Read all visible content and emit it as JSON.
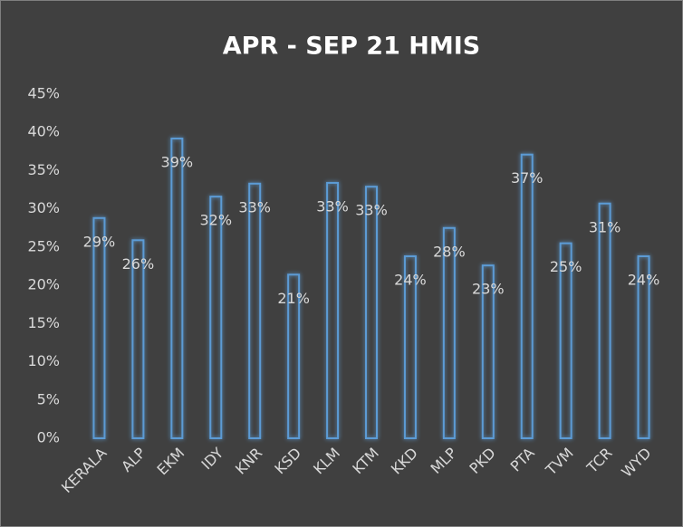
{
  "chart_data": {
    "type": "bar",
    "title": "APR - SEP 21 HMIS",
    "categories": [
      "KERALA",
      "ALP",
      "EKM",
      "IDY",
      "KNR",
      "KSD",
      "KLM",
      "KTM",
      "KKD",
      "MLP",
      "PKD",
      "PTA",
      "TVM",
      "TCR",
      "WYD"
    ],
    "values": [
      28.8,
      25.9,
      39.2,
      31.6,
      33.3,
      21.4,
      33.4,
      32.9,
      23.8,
      27.5,
      22.6,
      37.1,
      25.5,
      30.7,
      23.8
    ],
    "value_labels": [
      "29%",
      "26%",
      "39%",
      "32%",
      "33%",
      "21%",
      "33%",
      "33%",
      "24%",
      "28%",
      "23%",
      "37%",
      "25%",
      "31%",
      "24%"
    ],
    "color": "#5b9bd5",
    "ylim": [
      0,
      45
    ],
    "yticks": [
      {
        "value": 0,
        "label": "0%"
      },
      {
        "value": 5,
        "label": "5%"
      },
      {
        "value": 10,
        "label": "10%"
      },
      {
        "value": 15,
        "label": "15%"
      },
      {
        "value": 20,
        "label": "20%"
      },
      {
        "value": 25,
        "label": "25%"
      },
      {
        "value": 30,
        "label": "30%"
      },
      {
        "value": 35,
        "label": "35%"
      },
      {
        "value": 40,
        "label": "40%"
      },
      {
        "value": 45,
        "label": "45%"
      }
    ],
    "grid": false
  }
}
